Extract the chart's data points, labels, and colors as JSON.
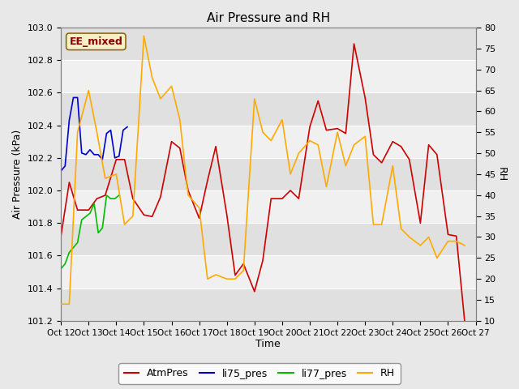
{
  "title": "Air Pressure and RH",
  "xlabel": "Time",
  "ylabel_left": "Air Pressure (kPa)",
  "ylabel_right": "RH",
  "annotation": "EE_mixed",
  "ylim_left": [
    101.2,
    103.0
  ],
  "ylim_right": [
    10,
    80
  ],
  "yticks_left": [
    101.2,
    101.4,
    101.6,
    101.8,
    102.0,
    102.2,
    102.4,
    102.6,
    102.8,
    103.0
  ],
  "yticks_right": [
    10,
    15,
    20,
    25,
    30,
    35,
    40,
    45,
    50,
    55,
    60,
    65,
    70,
    75,
    80
  ],
  "xtick_labels": [
    "Oct 12",
    "Oct 13",
    "Oct 14",
    "Oct 15",
    "Oct 16",
    "Oct 17",
    "Oct 18",
    "Oct 19",
    "Oct 20",
    "Oct 21",
    "Oct 22",
    "Oct 23",
    "Oct 24",
    "Oct 25",
    "Oct 26",
    "Oct 27"
  ],
  "fig_bg_color": "#e8e8e8",
  "plot_bg_bands": [
    "#e0e0e0",
    "#f0f0f0"
  ],
  "colors": {
    "AtmPres": "#cc0000",
    "li75_pres": "#0000cc",
    "li77_pres": "#00bb00",
    "RH": "#ffaa00"
  },
  "AtmPres_x": [
    12,
    12.3,
    12.6,
    13,
    13.3,
    13.6,
    14,
    14.3,
    14.6,
    15,
    15.3,
    15.6,
    16,
    16.3,
    16.6,
    17,
    17.3,
    17.6,
    18,
    18.3,
    18.6,
    19,
    19.3,
    19.6,
    20,
    20.3,
    20.6,
    21,
    21.3,
    21.6,
    22,
    22.3,
    22.6,
    23,
    23.3,
    23.6,
    24,
    24.3,
    24.6,
    25,
    25.3,
    25.6,
    26,
    26.3,
    26.6
  ],
  "AtmPres_y": [
    101.72,
    102.05,
    101.88,
    101.88,
    101.95,
    101.97,
    102.19,
    102.19,
    101.95,
    101.85,
    101.84,
    101.96,
    102.3,
    102.26,
    102.0,
    101.83,
    102.06,
    102.27,
    101.85,
    101.48,
    101.55,
    101.38,
    101.57,
    101.95,
    101.95,
    102.0,
    101.95,
    102.39,
    102.55,
    102.37,
    102.38,
    102.35,
    102.9,
    102.57,
    102.22,
    102.17,
    102.3,
    102.27,
    102.19,
    101.8,
    102.28,
    102.22,
    101.73,
    101.72,
    101.2
  ],
  "li75_pres_x": [
    12,
    12.15,
    12.3,
    12.45,
    12.6,
    12.75,
    12.9,
    13.05,
    13.2,
    13.35,
    13.5,
    13.65,
    13.8,
    13.95,
    14.1,
    14.25,
    14.4
  ],
  "li75_pres_y": [
    102.12,
    102.15,
    102.43,
    102.57,
    102.57,
    102.23,
    102.22,
    102.25,
    102.22,
    102.22,
    102.19,
    102.35,
    102.37,
    102.2,
    102.21,
    102.37,
    102.39
  ],
  "li77_pres_x": [
    12,
    12.15,
    12.3,
    12.45,
    12.6,
    12.75,
    12.9,
    13.05,
    13.2,
    13.35,
    13.5,
    13.65,
    13.8,
    13.95,
    14.1
  ],
  "li77_pres_y": [
    101.52,
    101.55,
    101.62,
    101.65,
    101.68,
    101.82,
    101.84,
    101.86,
    101.92,
    101.74,
    101.77,
    101.97,
    101.95,
    101.95,
    101.97
  ],
  "RH_x": [
    12,
    12.3,
    12.6,
    13,
    13.3,
    13.6,
    14,
    14.3,
    14.6,
    15,
    15.3,
    15.6,
    16,
    16.3,
    16.6,
    17,
    17.3,
    17.6,
    18,
    18.3,
    18.6,
    19,
    19.3,
    19.6,
    20,
    20.3,
    20.6,
    21,
    21.3,
    21.6,
    22,
    22.3,
    22.6,
    23,
    23.3,
    23.6,
    24,
    24.3,
    24.6,
    25,
    25.3,
    25.6,
    26,
    26.3,
    26.6
  ],
  "RH_y": [
    14,
    14,
    55,
    65,
    55,
    44,
    45,
    33,
    35,
    78,
    68,
    63,
    66,
    58,
    40,
    37,
    20,
    21,
    20,
    20,
    22,
    63,
    55,
    53,
    58,
    45,
    50,
    53,
    52,
    42,
    55,
    47,
    52,
    54,
    33,
    33,
    47,
    32,
    30,
    28,
    30,
    25,
    29,
    29,
    28
  ]
}
